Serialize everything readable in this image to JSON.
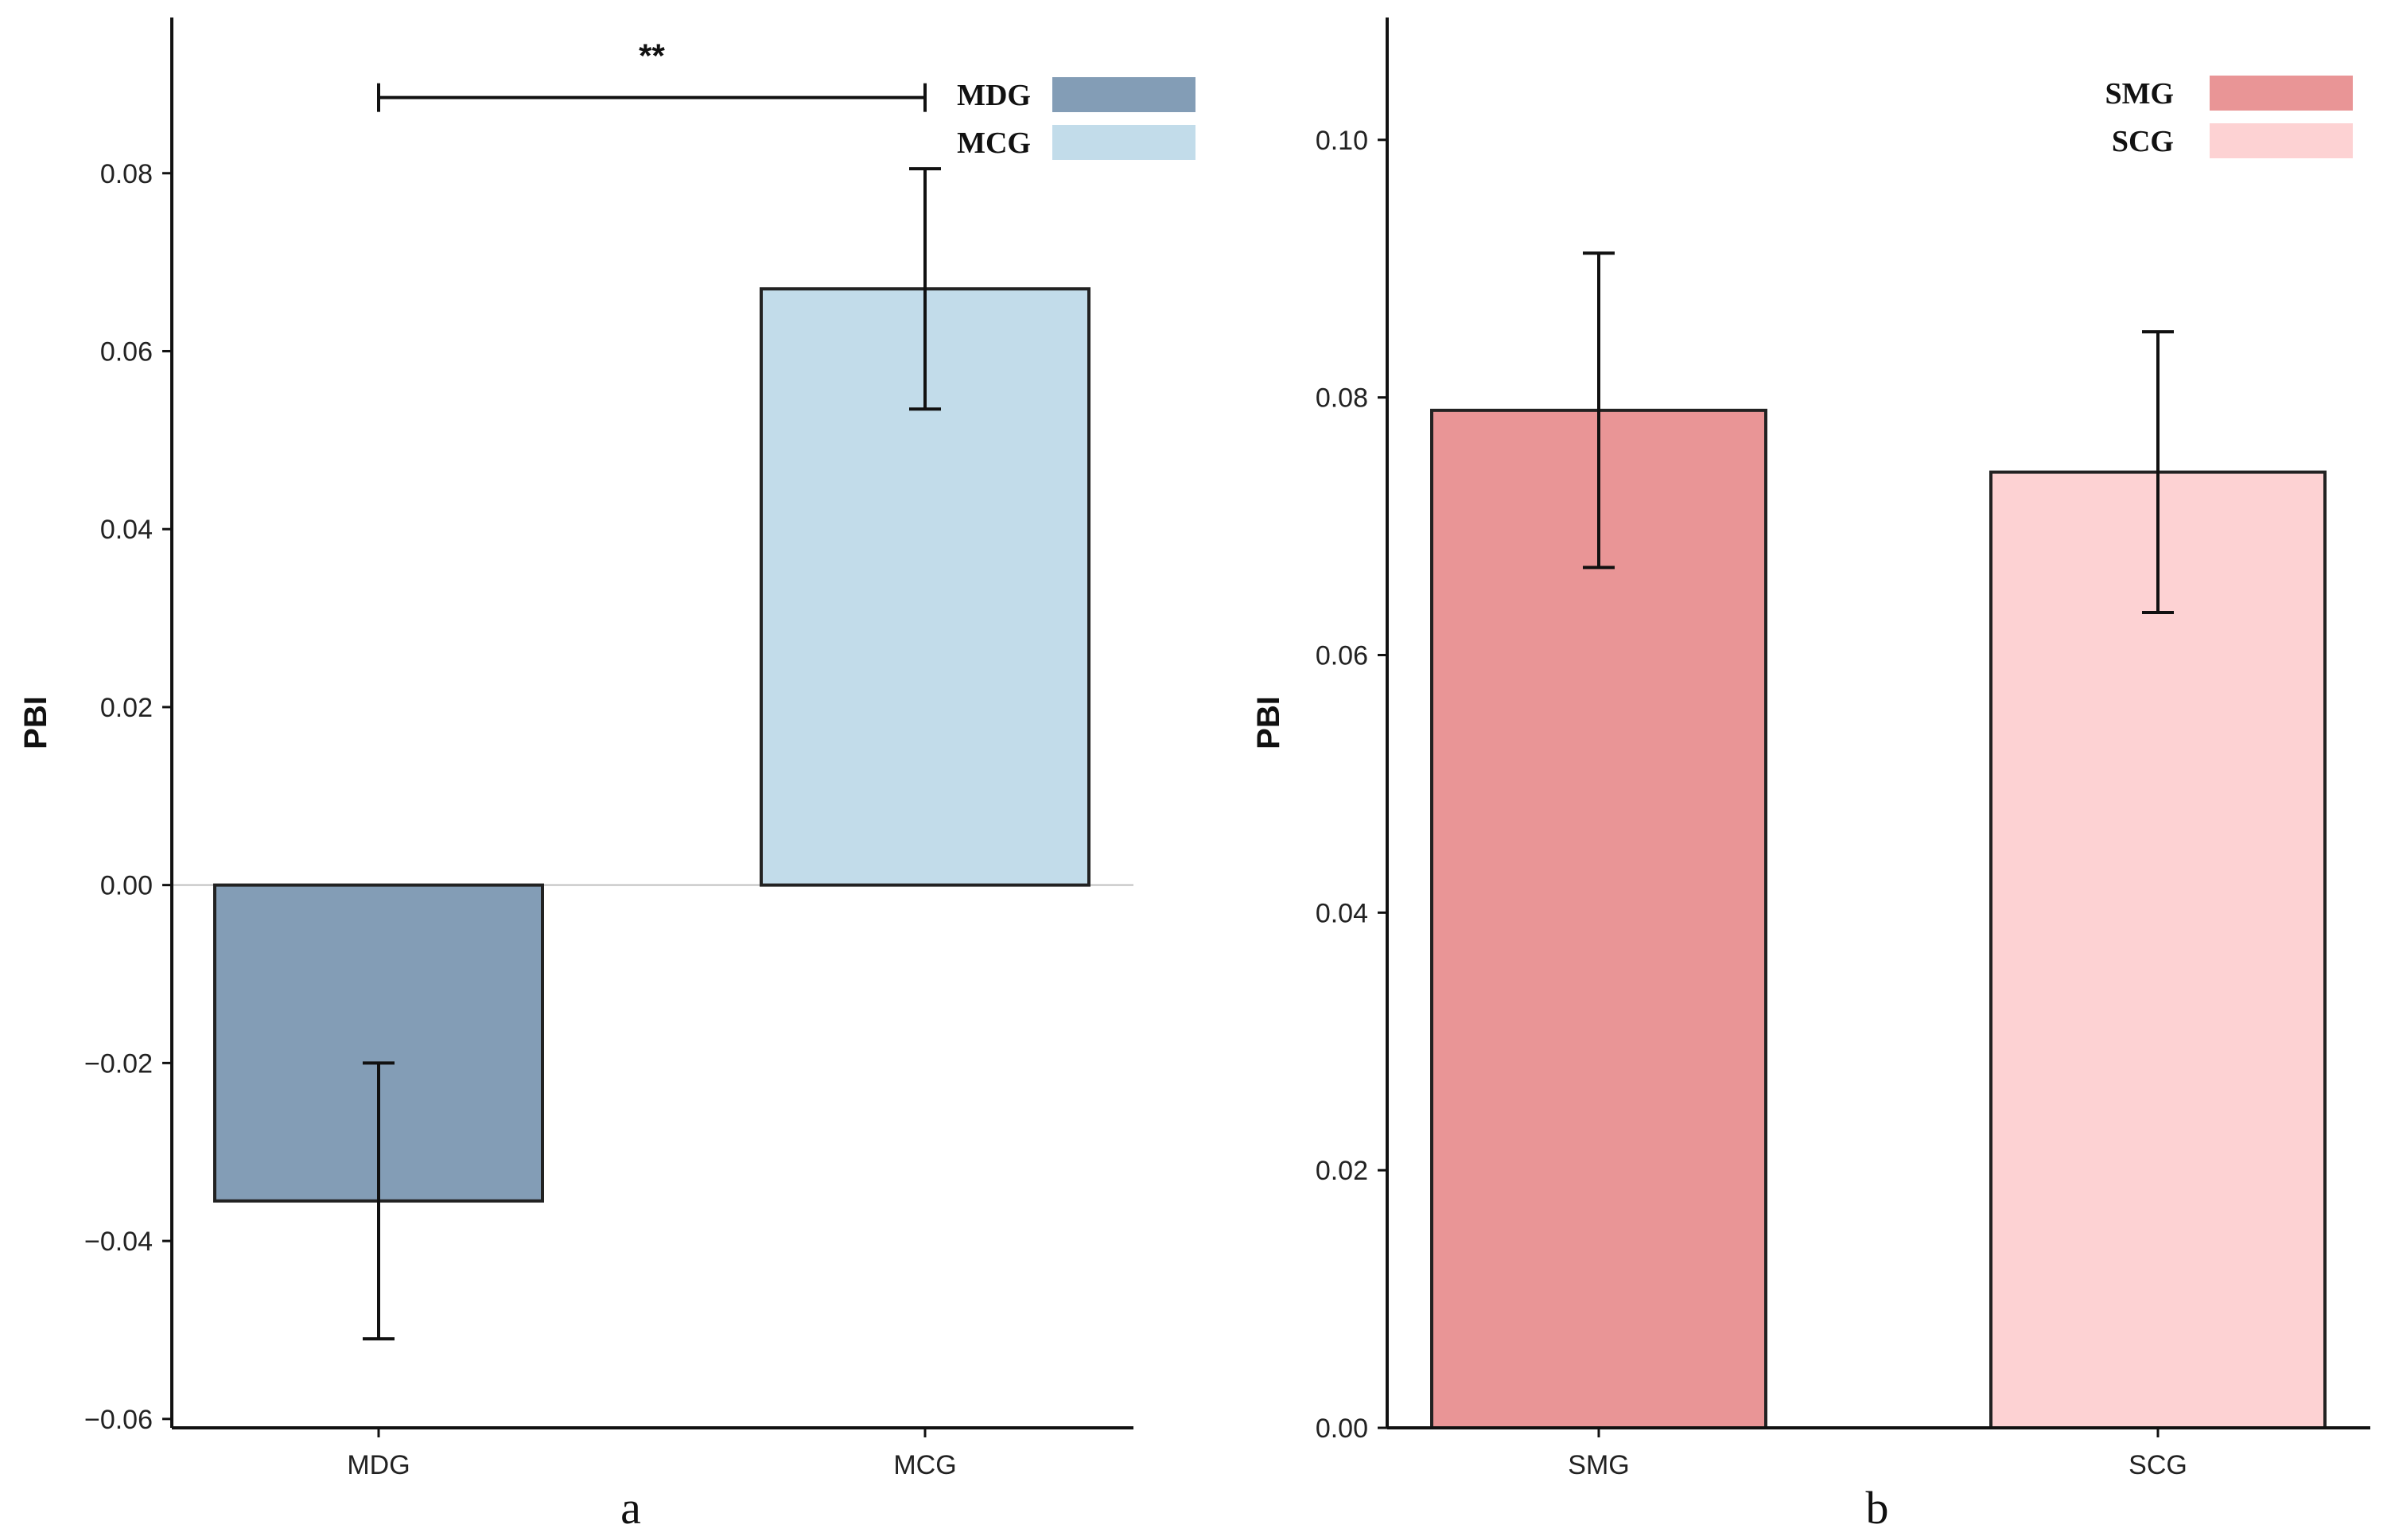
{
  "chart_data": [
    {
      "type": "bar",
      "panel_label": "a",
      "ylabel": "PBI",
      "xlabel": "",
      "ylim": [
        -0.061,
        0.0975
      ],
      "yticks": [
        -0.06,
        -0.04,
        -0.02,
        0.0,
        0.02,
        0.04,
        0.06,
        0.08
      ],
      "ytick_labels": [
        "−0.06",
        "−0.04",
        "−0.02",
        "0.00",
        "0.02",
        "0.04",
        "0.06",
        "0.08"
      ],
      "categories": [
        "MDG",
        "MCG"
      ],
      "values": [
        -0.0355,
        0.067
      ],
      "errors": [
        0.0155,
        0.0135
      ],
      "colors": [
        "#839db6",
        "#c2dcea"
      ],
      "legend": [
        {
          "label": "MDG",
          "color": "#839db6"
        },
        {
          "label": "MCG",
          "color": "#c2dcea"
        }
      ],
      "legend_position": "top-right",
      "significance": {
        "label": "**",
        "from": "MDG",
        "to": "MCG",
        "y": 0.0885
      },
      "zero_line": true
    },
    {
      "type": "bar",
      "panel_label": "b",
      "ylabel": "PBI",
      "xlabel": "",
      "ylim": [
        0,
        0.1095
      ],
      "yticks": [
        0.0,
        0.02,
        0.04,
        0.06,
        0.08,
        0.1
      ],
      "ytick_labels": [
        "0.00",
        "0.02",
        "0.04",
        "0.06",
        "0.08",
        "0.10"
      ],
      "categories": [
        "SMG",
        "SCG"
      ],
      "values": [
        0.079,
        0.0742
      ],
      "errors": [
        0.0122,
        0.0109
      ],
      "colors": [
        "#e99596",
        "#fdd2d3"
      ],
      "legend": [
        {
          "label": "SMG",
          "color": "#e99596"
        },
        {
          "label": "SCG",
          "color": "#fdd2d3"
        }
      ],
      "legend_position": "top-right"
    }
  ]
}
